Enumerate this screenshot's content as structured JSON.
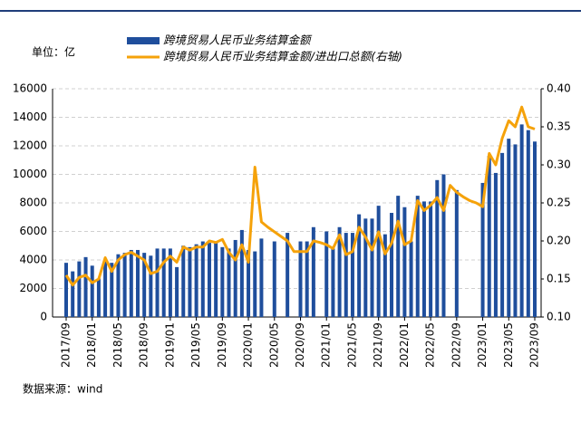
{
  "chart_data": {
    "type": "bar_line",
    "unit_label": "单位：亿",
    "source": "数据来源：wind",
    "categories": [
      "2017/09",
      null,
      null,
      null,
      "2018/01",
      null,
      null,
      null,
      "2018/05",
      null,
      null,
      null,
      "2018/09",
      null,
      null,
      null,
      "2019/01",
      null,
      null,
      null,
      "2019/05",
      null,
      null,
      null,
      "2019/09",
      null,
      null,
      null,
      "2020/01",
      null,
      null,
      null,
      "2020/05",
      null,
      null,
      null,
      "2020/09",
      null,
      null,
      null,
      "2021/01",
      null,
      null,
      null,
      "2021/05",
      null,
      null,
      null,
      "2021/09",
      null,
      null,
      null,
      "2022/01",
      null,
      null,
      null,
      "2022/05",
      null,
      null,
      null,
      "2022/09",
      null,
      null,
      null,
      "2023/01",
      null,
      null,
      null,
      "2023/05",
      null,
      null,
      null,
      "2023/09"
    ],
    "series": [
      {
        "name": "跨境贸易人民币业务结算金额",
        "color": "#1f4e9c",
        "kind": "bar",
        "values": [
          3800,
          3200,
          3900,
          4200,
          3600,
          2700,
          3900,
          3800,
          4400,
          4500,
          4700,
          4700,
          4500,
          4300,
          4800,
          4800,
          4800,
          3500,
          5000,
          4900,
          5100,
          5300,
          5200,
          5300,
          4900,
          4800,
          5400,
          6100,
          4700,
          4600,
          5500,
          null,
          5300,
          null,
          5900,
          null,
          5300,
          5300,
          6300,
          null,
          6000,
          4800,
          6300,
          5900,
          5900,
          7200,
          6900,
          6900,
          7800,
          5800,
          7300,
          8500,
          7700,
          5300,
          8500,
          8100,
          8100,
          9600,
          10000,
          null,
          8900,
          null,
          null,
          null,
          9400,
          11300,
          10100,
          11500,
          12500,
          12100,
          13500,
          13100,
          12300
        ]
      },
      {
        "name": "跨境贸易人民币业务结算金额/进出口总额(右轴)",
        "color": "#f5a20a",
        "kind": "line",
        "axis": "y2",
        "values": [
          0.155,
          0.142,
          0.152,
          0.155,
          0.145,
          0.15,
          0.178,
          0.16,
          0.175,
          0.182,
          0.185,
          0.18,
          0.175,
          0.157,
          0.16,
          0.172,
          0.18,
          0.172,
          0.192,
          0.188,
          0.192,
          0.192,
          0.2,
          0.198,
          0.202,
          0.185,
          0.175,
          0.195,
          0.172,
          0.297,
          0.225,
          0.218,
          0.212,
          0.206,
          0.2,
          0.186,
          0.186,
          0.186,
          0.2,
          0.198,
          0.195,
          0.19,
          0.208,
          0.182,
          0.186,
          0.218,
          0.205,
          0.188,
          0.212,
          0.183,
          0.197,
          0.226,
          0.195,
          0.2,
          0.253,
          0.24,
          0.247,
          0.257,
          0.24,
          0.273,
          0.264,
          0.258,
          0.253,
          0.25,
          0.245,
          0.315,
          0.3,
          0.335,
          0.358,
          0.35,
          0.376,
          0.35,
          0.347
        ]
      }
    ],
    "ylim": [
      0,
      16000
    ],
    "yticks": [
      0,
      2000,
      4000,
      6000,
      8000,
      10000,
      12000,
      14000,
      16000
    ],
    "y2lim": [
      0.1,
      0.4
    ],
    "y2ticks": [
      {
        "value": 0.1,
        "label": "0.10"
      },
      {
        "value": 0.15,
        "label": "0.15"
      },
      {
        "value": 0.2,
        "label": "0.20"
      },
      {
        "value": 0.25,
        "label": "0.25"
      },
      {
        "value": 0.3,
        "label": "0.30"
      },
      {
        "value": 0.35,
        "label": "0.35"
      },
      {
        "value": 0.4,
        "label": "0.40"
      }
    ],
    "grid": true
  }
}
